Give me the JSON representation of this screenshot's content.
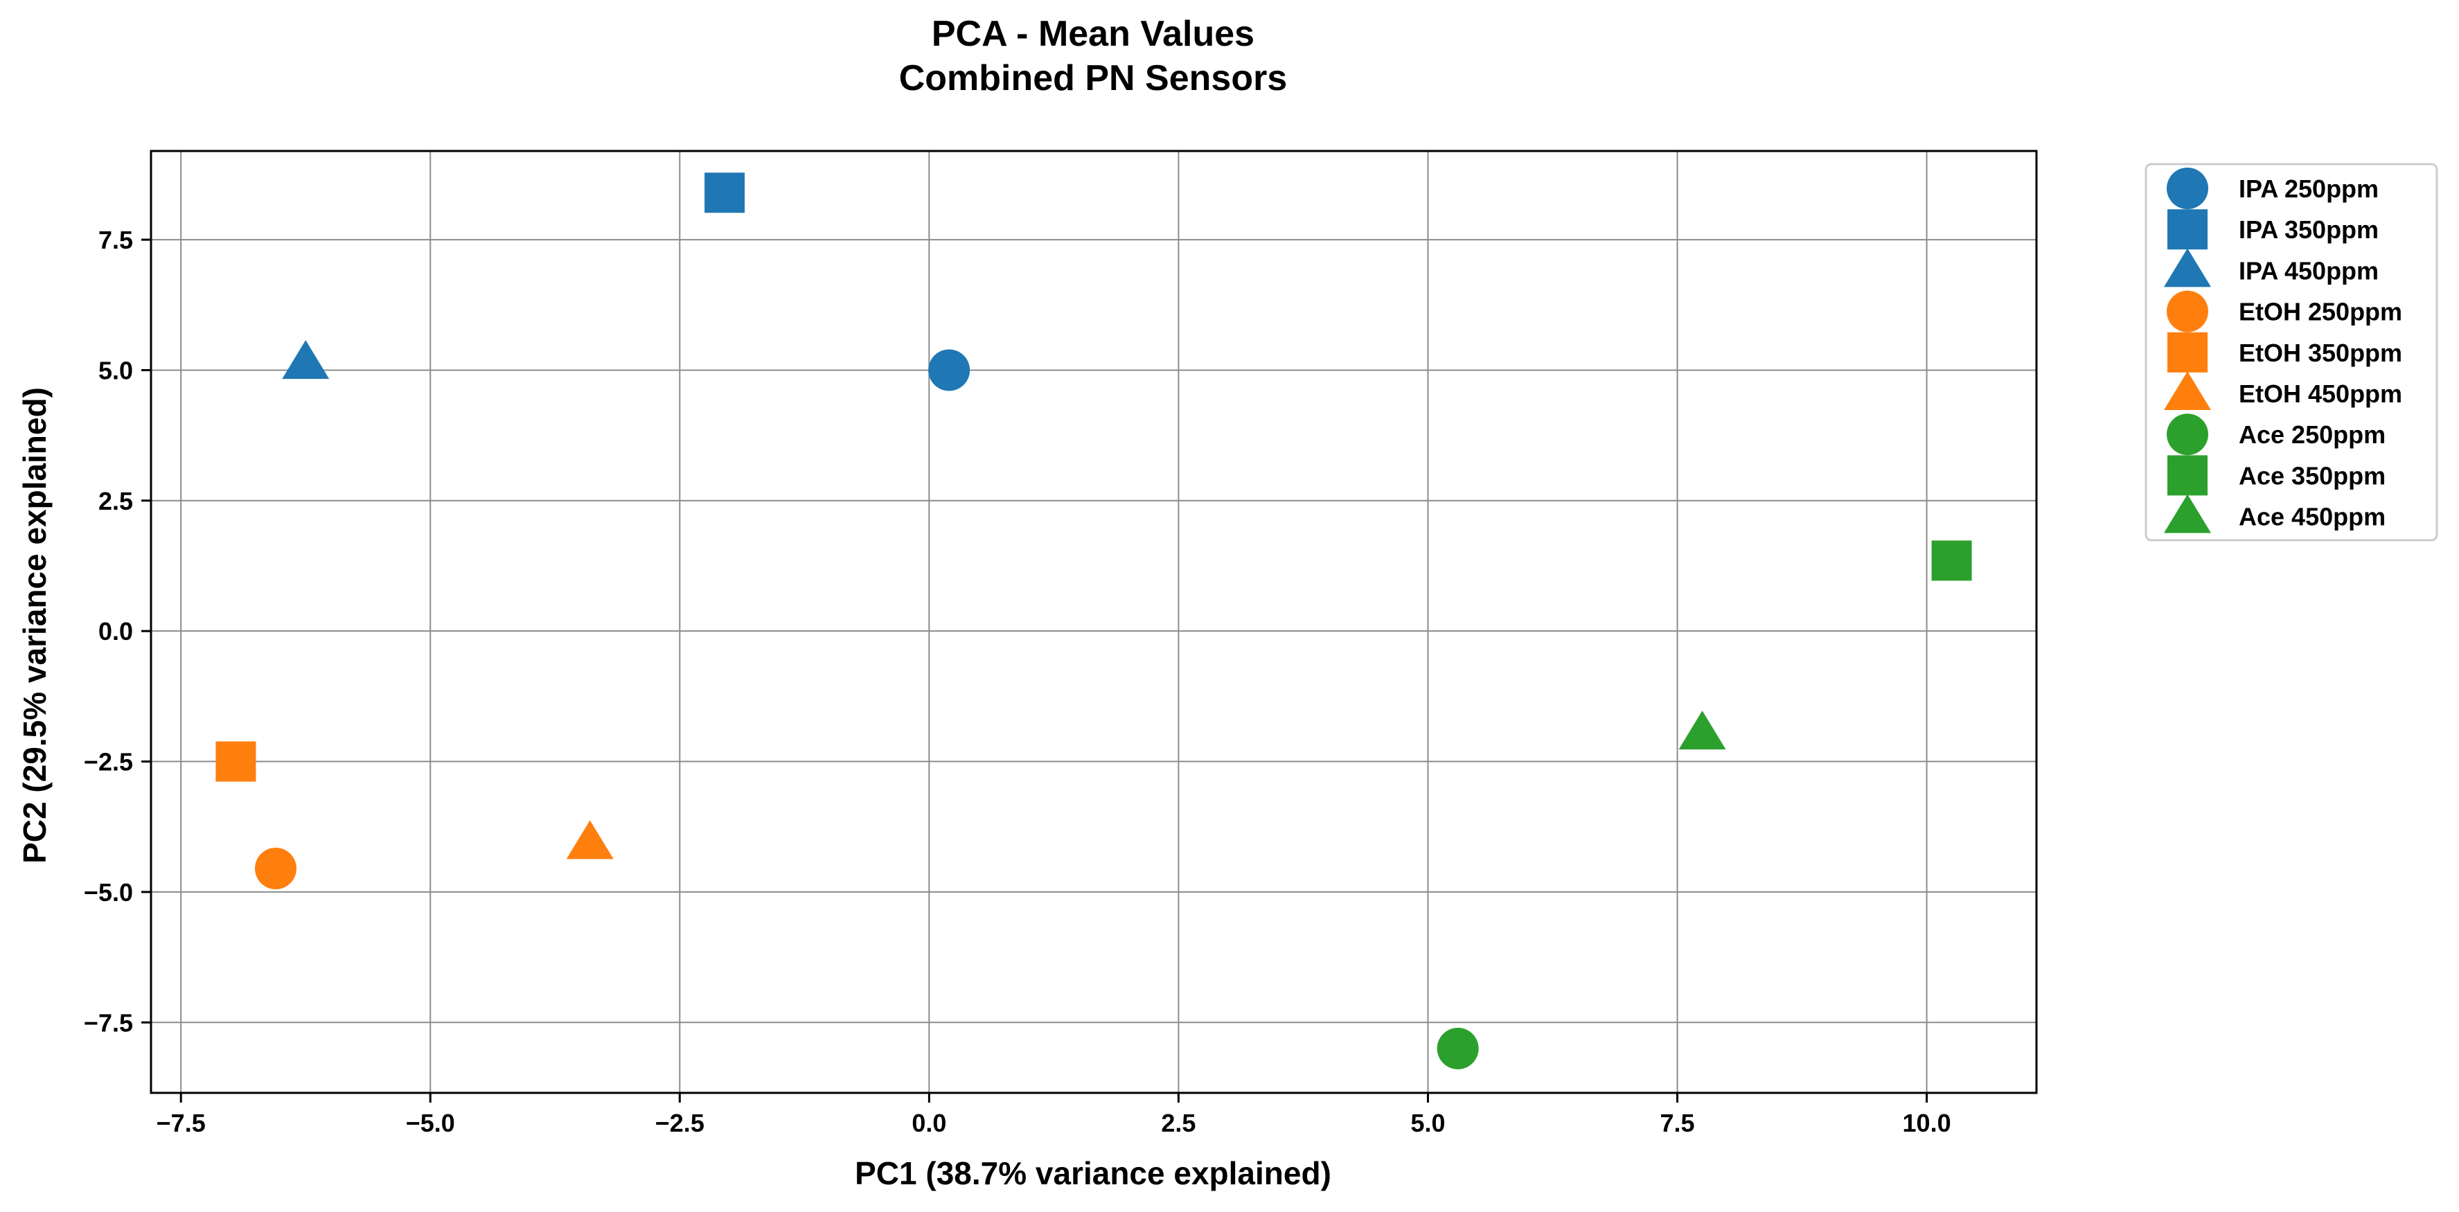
{
  "chart_data": {
    "type": "scatter",
    "title": "PCA - Mean Values",
    "subtitle": "Combined PN Sensors",
    "xlabel": "PC1 (38.7% variance explained)",
    "ylabel": "PC2 (29.5% variance explained)",
    "xlim": [
      -7.8,
      11.1
    ],
    "ylim": [
      -8.85,
      9.2
    ],
    "x_ticks": [
      -7.5,
      -5.0,
      -2.5,
      0.0,
      2.5,
      5.0,
      7.5,
      10.0
    ],
    "x_tick_labels": [
      "−7.5",
      "−5.0",
      "−2.5",
      "0.0",
      "2.5",
      "5.0",
      "7.5",
      "10.0"
    ],
    "y_ticks": [
      7.5,
      5.0,
      2.5,
      0.0,
      -2.5,
      -5.0,
      -7.5
    ],
    "y_tick_labels": [
      "7.5",
      "5.0",
      "2.5",
      "0.0",
      "−2.5",
      "−5.0",
      "−7.5"
    ],
    "grid": true,
    "legend_position": "outside-right-top",
    "series": [
      {
        "name": "IPA 250ppm",
        "marker": "circle",
        "color": "#1f77b4",
        "x": 0.2,
        "y": 5.0
      },
      {
        "name": "IPA 350ppm",
        "marker": "square",
        "color": "#1f77b4",
        "x": -2.05,
        "y": 8.4
      },
      {
        "name": "IPA 450ppm",
        "marker": "triangle",
        "color": "#1f77b4",
        "x": -6.25,
        "y": 5.15
      },
      {
        "name": "EtOH 250ppm",
        "marker": "circle",
        "color": "#ff7f0e",
        "x": -6.55,
        "y": -4.55
      },
      {
        "name": "EtOH 350ppm",
        "marker": "square",
        "color": "#ff7f0e",
        "x": -6.95,
        "y": -2.5
      },
      {
        "name": "EtOH 450ppm",
        "marker": "triangle",
        "color": "#ff7f0e",
        "x": -3.4,
        "y": -4.05
      },
      {
        "name": "Ace 250ppm",
        "marker": "circle",
        "color": "#2ca02c",
        "x": 5.3,
        "y": -8.0
      },
      {
        "name": "Ace 350ppm",
        "marker": "square",
        "color": "#2ca02c",
        "x": 10.25,
        "y": 1.35
      },
      {
        "name": "Ace 450ppm",
        "marker": "triangle",
        "color": "#2ca02c",
        "x": 7.75,
        "y": -1.95
      }
    ]
  }
}
